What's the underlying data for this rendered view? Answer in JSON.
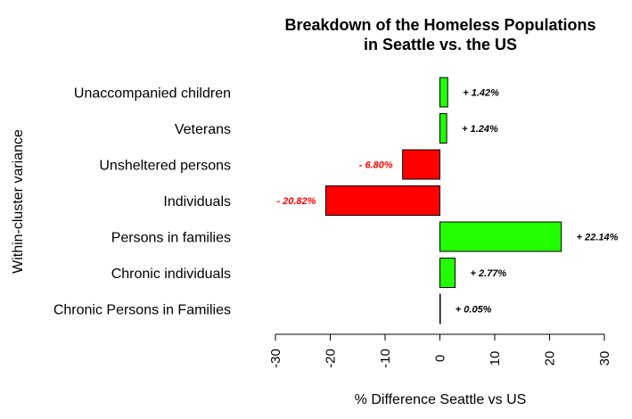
{
  "chart_data": {
    "type": "bar",
    "orientation": "horizontal",
    "title": "Breakdown of the Homeless Populations",
    "subtitle": "in Seattle vs. the US",
    "xlabel": "% Difference Seattle vs US",
    "ylabel": "Within-cluster variance",
    "xlim": [
      -30,
      30
    ],
    "xticks": [
      -30,
      -20,
      -10,
      0,
      10,
      20,
      30
    ],
    "xtick_labels": [
      "-30",
      "-20",
      "-10",
      "0",
      "10",
      "20",
      "30"
    ],
    "grid": false,
    "categories": [
      "Unaccompanied children",
      "Veterans",
      "Unsheltered persons",
      "Individuals",
      "Persons in families",
      "Chronic individuals",
      "Chronic Persons in Families"
    ],
    "values": [
      1.42,
      1.24,
      -6.8,
      -20.82,
      22.14,
      2.77,
      0.05
    ],
    "data_labels": [
      "+  1.42%",
      "+  1.24%",
      "-  6.80%",
      "- 20.82%",
      "+ 22.14%",
      "+  2.77%",
      "+  0.05%"
    ],
    "colors": {
      "positive": "#22ff00",
      "negative": "#ff0000",
      "positive_label": "#000000",
      "negative_label": "#ff0000",
      "outline": "#000000"
    }
  }
}
